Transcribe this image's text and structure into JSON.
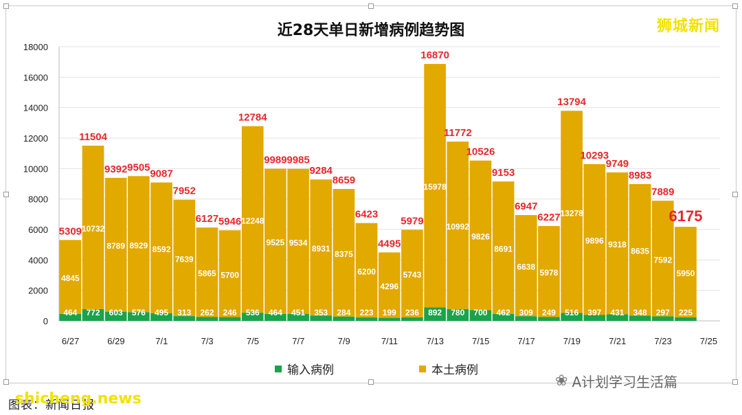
{
  "title": "近28天单日新增病例趋势图",
  "brand": "狮城新闻",
  "watermark": "A计划学习生活篇",
  "footer_text": "图表：新闻日报",
  "footer_overlay": "shicheng.news",
  "colors": {
    "imported": "#1aa34a",
    "local": "#e2a900",
    "total_label": "#e8262a"
  },
  "chart_data": {
    "type": "bar",
    "stacked": true,
    "categories": [
      "6/27",
      "6/28",
      "6/29",
      "6/30",
      "7/1",
      "7/2",
      "7/3",
      "7/4",
      "7/5",
      "7/6",
      "7/7",
      "7/8",
      "7/9",
      "7/10",
      "7/11",
      "7/12",
      "7/13",
      "7/14",
      "7/15",
      "7/16",
      "7/17",
      "7/18",
      "7/19",
      "7/20",
      "7/21",
      "7/22",
      "7/23",
      "7/24"
    ],
    "x_tick_labels": [
      "6/27",
      "6/29",
      "7/1",
      "7/3",
      "7/5",
      "7/7",
      "7/9",
      "7/11",
      "7/13",
      "7/15",
      "7/17",
      "7/19",
      "7/21",
      "7/23",
      "7/25"
    ],
    "series": [
      {
        "name": "输入病例",
        "values": [
          464,
          772,
          603,
          576,
          495,
          313,
          262,
          246,
          536,
          464,
          451,
          353,
          284,
          223,
          199,
          236,
          892,
          780,
          700,
          462,
          309,
          249,
          516,
          397,
          431,
          348,
          297,
          225
        ]
      },
      {
        "name": "本土病例",
        "values": [
          4845,
          10732,
          8789,
          8929,
          8592,
          7639,
          5865,
          5700,
          12248,
          9525,
          9534,
          8931,
          8375,
          6200,
          4296,
          5743,
          15978,
          10992,
          9826,
          8691,
          6638,
          5978,
          13278,
          9896,
          9318,
          8635,
          7592,
          5950
        ]
      }
    ],
    "totals": [
      5309,
      11504,
      9392,
      9505,
      9087,
      7952,
      6127,
      5946,
      12784,
      9989,
      9985,
      9284,
      8659,
      6423,
      4495,
      5979,
      16870,
      11772,
      10526,
      9153,
      6947,
      6227,
      13794,
      10293,
      9749,
      8983,
      7889,
      6175
    ],
    "y_ticks": [
      0,
      2000,
      4000,
      6000,
      8000,
      10000,
      12000,
      14000,
      16000,
      18000
    ],
    "ylim": [
      0,
      18000
    ],
    "grid": true,
    "legend_position": "bottom"
  }
}
